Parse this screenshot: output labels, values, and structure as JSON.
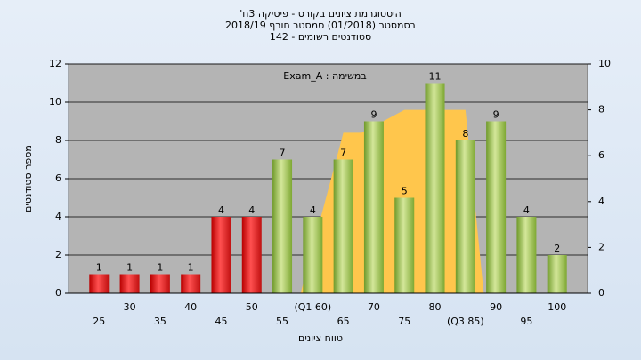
{
  "chart_data": {
    "type": "bar",
    "title": [
      "היסטוגרמת ציונים בקורס - פיסיקה 3ח'",
      "בסמסטר  (01/2018)  סמסטר חורף 2018/19",
      "סטודנטים רשומים - 142"
    ],
    "annotation": "במשימה : Exam_A",
    "x_label": "טווח ציונים",
    "y_label": "מספר סטודנטים",
    "categories": [
      "25",
      "30",
      "35",
      "40",
      "45",
      "50",
      "55",
      "(Q1 60)",
      "65",
      "70",
      "75",
      "80",
      "(Q3 85)",
      "90",
      "95",
      "100"
    ],
    "x": [
      25,
      30,
      35,
      40,
      45,
      50,
      55,
      60,
      65,
      70,
      75,
      80,
      85,
      90,
      95,
      100
    ],
    "xlim": [
      20,
      105
    ],
    "values": [
      1,
      1,
      1,
      1,
      4,
      4,
      7,
      4,
      7,
      9,
      5,
      11,
      8,
      9,
      4,
      2
    ],
    "colors": [
      "red",
      "red",
      "red",
      "red",
      "red",
      "red",
      "green",
      "green",
      "green",
      "green",
      "green",
      "green",
      "green",
      "green",
      "green",
      "green"
    ],
    "area": {
      "type": "area",
      "x": [
        58,
        65,
        68,
        75,
        85,
        88
      ],
      "values": [
        0,
        7,
        7,
        8,
        8,
        0
      ],
      "axis": "y2",
      "color": "#ffc64c"
    },
    "ylim": [
      0,
      12
    ],
    "yticks": [
      0,
      2,
      4,
      6,
      8,
      10,
      12
    ],
    "y2lim": [
      0,
      10
    ],
    "y2ticks": [
      0,
      2,
      4,
      6,
      8,
      10
    ],
    "grid": true
  }
}
